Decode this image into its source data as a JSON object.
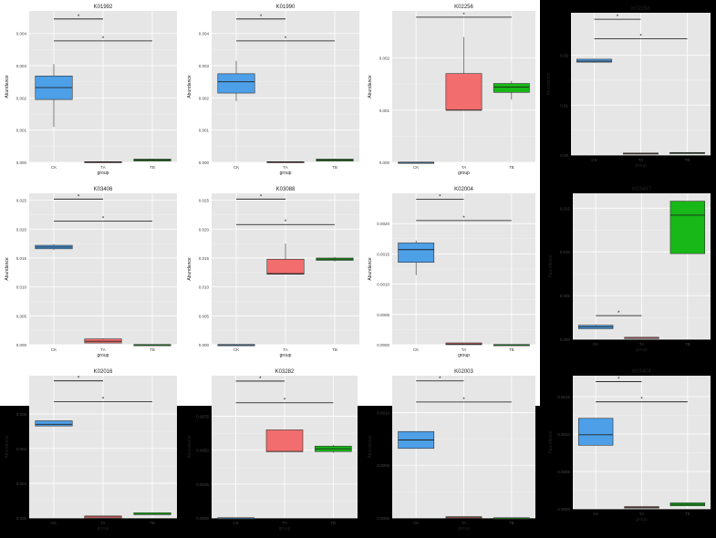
{
  "chart_data": [
    {
      "type": "box",
      "title": "K01992",
      "xlabel": "group",
      "ylabel": "Abundance",
      "categories": [
        "CK",
        "TA",
        "TB"
      ],
      "yticks": [
        "0.000",
        "0.001",
        "0.002",
        "0.003",
        "0.004"
      ],
      "ylim": [
        0,
        0.0047
      ],
      "boxes": [
        {
          "lo": 0.0011,
          "q1": 0.00195,
          "med": 0.00232,
          "q3": 0.00268,
          "hi": 0.00305,
          "color": "#4d9fe8"
        },
        {
          "lo": 0.0,
          "q1": 0.0,
          "med": 1e-05,
          "q3": 2e-05,
          "hi": 2e-05,
          "color": "#f26d6d"
        },
        {
          "lo": 4e-05,
          "q1": 4e-05,
          "med": 7e-05,
          "q3": 0.0001,
          "hi": 0.00011,
          "color": "#17b817"
        }
      ],
      "sig": [
        {
          "from": 0,
          "to": 1,
          "y": 0.00445,
          "label": "*"
        },
        {
          "from": 0,
          "to": 2,
          "y": 0.00377,
          "label": "*"
        }
      ]
    },
    {
      "type": "box",
      "title": "K01990",
      "xlabel": "group",
      "ylabel": "Abundance",
      "categories": [
        "CK",
        "TA",
        "TB"
      ],
      "yticks": [
        "0.000",
        "0.001",
        "0.002",
        "0.003",
        "0.004"
      ],
      "ylim": [
        0,
        0.0047
      ],
      "boxes": [
        {
          "lo": 0.0019,
          "q1": 0.00215,
          "med": 0.0025,
          "q3": 0.00275,
          "hi": 0.00315,
          "color": "#4d9fe8"
        },
        {
          "lo": 0.0,
          "q1": 0.0,
          "med": 1e-05,
          "q3": 2e-05,
          "hi": 2e-05,
          "color": "#f26d6d"
        },
        {
          "lo": 4e-05,
          "q1": 4e-05,
          "med": 7e-05,
          "q3": 0.0001,
          "hi": 0.00011,
          "color": "#17b817"
        }
      ],
      "sig": [
        {
          "from": 0,
          "to": 1,
          "y": 0.00445,
          "label": "*"
        },
        {
          "from": 0,
          "to": 2,
          "y": 0.00377,
          "label": "*"
        }
      ]
    },
    {
      "type": "box",
      "title": "K02256",
      "xlabel": "group",
      "ylabel": "Abundance",
      "categories": [
        "CK",
        "TA",
        "TB"
      ],
      "yticks": [
        "0.000",
        "0.001",
        "0.002"
      ],
      "ylim": [
        0,
        0.0029
      ],
      "boxes": [
        {
          "lo": 0.0,
          "q1": 0.0,
          "med": 0.0,
          "q3": 0.0,
          "hi": 0.0,
          "color": "#4d9fe8"
        },
        {
          "lo": 0.001,
          "q1": 0.001,
          "med": 0.001,
          "q3": 0.0017,
          "hi": 0.0024,
          "color": "#f26d6d"
        },
        {
          "lo": 0.0012,
          "q1": 0.00134,
          "med": 0.00144,
          "q3": 0.00151,
          "hi": 0.00156,
          "color": "#17b817"
        }
      ],
      "sig": [
        {
          "from": 0,
          "to": 2,
          "y": 0.00278,
          "label": "*"
        }
      ]
    },
    {
      "type": "box",
      "title": "K02256",
      "xlabel": "group",
      "ylabel": "Abundance",
      "categories": [
        "CK",
        "TA",
        "TB"
      ],
      "yticks": [
        "0.00",
        "0.01",
        "0.02"
      ],
      "ylim": [
        0,
        0.0285
      ],
      "boxes": [
        {
          "lo": 0.0185,
          "q1": 0.0186,
          "med": 0.0188,
          "q3": 0.0192,
          "hi": 0.0193,
          "color": "#4d9fe8"
        },
        {
          "lo": 0.0002,
          "q1": 0.0002,
          "med": 0.0003,
          "q3": 0.0004,
          "hi": 0.0004,
          "color": "#f26d6d"
        },
        {
          "lo": 0.0003,
          "q1": 0.0003,
          "med": 0.0004,
          "q3": 0.0005,
          "hi": 0.0005,
          "color": "#17b817"
        }
      ],
      "sig": [
        {
          "from": 0,
          "to": 1,
          "y": 0.0272,
          "label": "*"
        },
        {
          "from": 0,
          "to": 2,
          "y": 0.0233,
          "label": "*"
        }
      ]
    },
    {
      "type": "box",
      "title": "K03406",
      "xlabel": "group",
      "ylabel": "Abundance",
      "categories": [
        "CK",
        "TA",
        "TB"
      ],
      "yticks": [
        "0.000",
        "0.005",
        "0.010",
        "0.015",
        "0.020",
        "0.025"
      ],
      "ylim": [
        0,
        0.0262
      ],
      "boxes": [
        {
          "lo": 0.0164,
          "q1": 0.0166,
          "med": 0.0169,
          "q3": 0.0172,
          "hi": 0.0174,
          "color": "#4d9fe8"
        },
        {
          "lo": 0.0003,
          "q1": 0.0003,
          "med": 0.0006,
          "q3": 0.001,
          "hi": 0.0011,
          "color": "#f26d6d"
        },
        {
          "lo": 0.0,
          "q1": 0.0,
          "med": 0.0,
          "q3": 0.0,
          "hi": 0.0,
          "color": "#17b817"
        }
      ],
      "sig": [
        {
          "from": 0,
          "to": 1,
          "y": 0.0252,
          "label": "*"
        },
        {
          "from": 0,
          "to": 2,
          "y": 0.0214,
          "label": "*"
        }
      ]
    },
    {
      "type": "box",
      "title": "K03088",
      "xlabel": "group",
      "ylabel": "Abundance",
      "categories": [
        "CK",
        "TA",
        "TB"
      ],
      "yticks": [
        "0.000",
        "0.005",
        "0.010",
        "0.015",
        "0.020",
        "0.025"
      ],
      "ylim": [
        0,
        0.0262
      ],
      "boxes": [
        {
          "lo": 0.0,
          "q1": 0.0,
          "med": 0.0,
          "q3": 0.0,
          "hi": 0.0,
          "color": "#4d9fe8"
        },
        {
          "lo": 0.0122,
          "q1": 0.0122,
          "med": 0.0123,
          "q3": 0.0148,
          "hi": 0.0175,
          "color": "#f26d6d"
        },
        {
          "lo": 0.0144,
          "q1": 0.0146,
          "med": 0.0148,
          "q3": 0.015,
          "hi": 0.0152,
          "color": "#17b817"
        }
      ],
      "sig": [
        {
          "from": 0,
          "to": 1,
          "y": 0.0252,
          "label": "*"
        },
        {
          "from": 0,
          "to": 2,
          "y": 0.0208,
          "label": "*"
        }
      ]
    },
    {
      "type": "box",
      "title": "K02004",
      "xlabel": "group",
      "ylabel": "Abundance",
      "categories": [
        "CK",
        "TA",
        "TB"
      ],
      "yticks": [
        "0.0000",
        "0.0005",
        "0.0010",
        "0.0015",
        "0.0020"
      ],
      "ylim": [
        0,
        0.0025
      ],
      "boxes": [
        {
          "lo": 0.00115,
          "q1": 0.00136,
          "med": 0.00157,
          "q3": 0.00168,
          "hi": 0.00172,
          "color": "#4d9fe8"
        },
        {
          "lo": 0.0,
          "q1": 0.0,
          "med": 1e-05,
          "q3": 3e-05,
          "hi": 3e-05,
          "color": "#f26d6d"
        },
        {
          "lo": 0.0,
          "q1": 0.0,
          "med": 0.0,
          "q3": 0.0,
          "hi": 0.0,
          "color": "#17b817"
        }
      ],
      "sig": [
        {
          "from": 0,
          "to": 1,
          "y": 0.0024,
          "label": "*"
        },
        {
          "from": 0,
          "to": 2,
          "y": 0.00205,
          "label": "*"
        }
      ]
    },
    {
      "type": "box",
      "title": "K03497",
      "xlabel": "group",
      "ylabel": "Abundance",
      "categories": [
        "CK",
        "TA",
        "TB"
      ],
      "yticks": [
        "0.000",
        "0.005",
        "0.010",
        "0.015"
      ],
      "ylim": [
        0,
        0.0167
      ],
      "boxes": [
        {
          "lo": 0.0012,
          "q1": 0.0012,
          "med": 0.0014,
          "q3": 0.0016,
          "hi": 0.0017,
          "color": "#4d9fe8"
        },
        {
          "lo": 0.0001,
          "q1": 0.0001,
          "med": 0.0002,
          "q3": 0.0002,
          "hi": 0.0002,
          "color": "#f26d6d"
        },
        {
          "lo": 0.0098,
          "q1": 0.0098,
          "med": 0.0142,
          "q3": 0.0158,
          "hi": 0.0158,
          "color": "#17b817"
        }
      ],
      "sig": [
        {
          "from": 0,
          "to": 1,
          "y": 0.0027,
          "label": "*"
        }
      ]
    },
    {
      "type": "box",
      "title": "K02016",
      "xlabel": "group",
      "ylabel": "Abundance",
      "categories": [
        "CK",
        "TA",
        "TB"
      ],
      "yticks": [
        "0.000",
        "0.002",
        "0.004",
        "0.006"
      ],
      "ylim": [
        0,
        0.0082
      ],
      "boxes": [
        {
          "lo": 0.0053,
          "q1": 0.0053,
          "med": 0.0054,
          "q3": 0.0056,
          "hi": 0.0056,
          "color": "#4d9fe8"
        },
        {
          "lo": 0.0,
          "q1": 0.0,
          "med": 0.0001,
          "q3": 0.0001,
          "hi": 0.0001,
          "color": "#f26d6d"
        },
        {
          "lo": 0.0002,
          "q1": 0.0002,
          "med": 0.0002,
          "q3": 0.0003,
          "hi": 0.0003,
          "color": "#17b817"
        }
      ],
      "sig": [
        {
          "from": 0,
          "to": 1,
          "y": 0.0079,
          "label": "*"
        },
        {
          "from": 0,
          "to": 2,
          "y": 0.0067,
          "label": "*"
        }
      ]
    },
    {
      "type": "box",
      "title": "K03282",
      "xlabel": "group",
      "ylabel": "Abundance",
      "categories": [
        "CK",
        "TA",
        "TB"
      ],
      "yticks": [
        "0.0000",
        "0.0025",
        "0.0050",
        "0.0075"
      ],
      "ylim": [
        0,
        0.0105
      ],
      "boxes": [
        {
          "lo": 0.0,
          "q1": 0.0,
          "med": 0.0,
          "q3": 0.0,
          "hi": 0.0,
          "color": "#4d9fe8"
        },
        {
          "lo": 0.0049,
          "q1": 0.0049,
          "med": 0.0049,
          "q3": 0.0065,
          "hi": 0.0065,
          "color": "#f26d6d"
        },
        {
          "lo": 0.0048,
          "q1": 0.0049,
          "med": 0.0051,
          "q3": 0.0053,
          "hi": 0.0054,
          "color": "#17b817"
        }
      ],
      "sig": [
        {
          "from": 0,
          "to": 1,
          "y": 0.0101,
          "label": "*"
        },
        {
          "from": 0,
          "to": 2,
          "y": 0.0085,
          "label": "*"
        }
      ]
    },
    {
      "type": "box",
      "title": "K02003",
      "xlabel": "group",
      "ylabel": "Abundance",
      "categories": [
        "CK",
        "TA",
        "TB"
      ],
      "yticks": [
        "0.0000",
        "0.0005",
        "0.0010"
      ],
      "ylim": [
        0,
        0.00135
      ],
      "boxes": [
        {
          "lo": 0.00066,
          "q1": 0.00066,
          "med": 0.00074,
          "q3": 0.00082,
          "hi": 0.00082,
          "color": "#4d9fe8"
        },
        {
          "lo": 0.0,
          "q1": 0.0,
          "med": 1e-05,
          "q3": 1e-05,
          "hi": 1e-05,
          "color": "#f26d6d"
        },
        {
          "lo": 0.0,
          "q1": 0.0,
          "med": 0.0,
          "q3": 0.0,
          "hi": 0.0,
          "color": "#17b817"
        }
      ],
      "sig": [
        {
          "from": 0,
          "to": 1,
          "y": 0.0013,
          "label": "*"
        },
        {
          "from": 0,
          "to": 2,
          "y": 0.0011,
          "label": "*"
        }
      ]
    },
    {
      "type": "box",
      "title": "K03404",
      "xlabel": "group",
      "ylabel": "Abundance",
      "categories": [
        "CK",
        "TA",
        "TB"
      ],
      "yticks": [
        "0.0000",
        "0.0005",
        "0.0010",
        "0.0015"
      ],
      "ylim": [
        0,
        0.00178
      ],
      "boxes": [
        {
          "lo": 0.00085,
          "q1": 0.00085,
          "med": 0.00099,
          "q3": 0.00121,
          "hi": 0.00121,
          "color": "#4d9fe8"
        },
        {
          "lo": 1e-05,
          "q1": 1e-05,
          "med": 2e-05,
          "q3": 3e-05,
          "hi": 3e-05,
          "color": "#f26d6d"
        },
        {
          "lo": 4e-05,
          "q1": 4e-05,
          "med": 6e-05,
          "q3": 8e-05,
          "hi": 8e-05,
          "color": "#17b817"
        }
      ],
      "sig": [
        {
          "from": 0,
          "to": 1,
          "y": 0.0017,
          "label": "*"
        },
        {
          "from": 0,
          "to": 2,
          "y": 0.00143,
          "label": "*"
        }
      ]
    }
  ]
}
